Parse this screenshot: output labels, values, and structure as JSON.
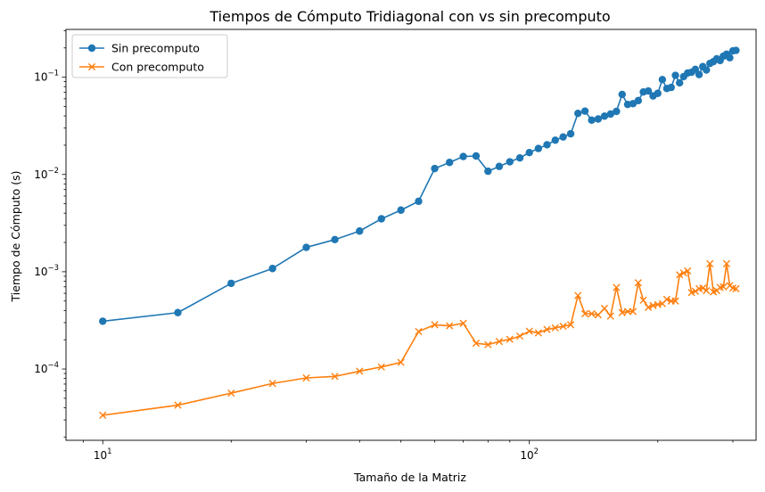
{
  "chart_data": {
    "type": "line",
    "title": "Tiempos de Cómputo Tridiagonal con vs sin precomputo",
    "xlabel": "Tamaño de la Matriz",
    "ylabel": "Tiempo de Cómputo (s)",
    "xscale": "log",
    "yscale": "log",
    "xlim": [
      8.2,
      340
    ],
    "ylim": [
      1.85e-05,
      0.31
    ],
    "grid": false,
    "legend_position": "top-left",
    "x_ticks": [
      {
        "value": 10,
        "base": "10",
        "exp": "1"
      },
      {
        "value": 100,
        "base": "10",
        "exp": "2"
      }
    ],
    "y_ticks": [
      {
        "value": 0.0001,
        "base": "10",
        "exp": "−4"
      },
      {
        "value": 0.001,
        "base": "10",
        "exp": "−3"
      },
      {
        "value": 0.01,
        "base": "10",
        "exp": "−2"
      },
      {
        "value": 0.1,
        "base": "10",
        "exp": "−1"
      }
    ],
    "x": [
      10,
      15,
      20,
      25,
      30,
      35,
      40,
      45,
      50,
      55,
      60,
      65,
      70,
      75,
      80,
      85,
      90,
      95,
      100,
      105,
      110,
      115,
      120,
      125,
      130,
      135,
      140,
      145,
      150,
      155,
      160,
      165,
      170,
      175,
      180,
      185,
      190,
      195,
      200,
      205,
      210,
      215,
      220,
      225,
      230,
      235,
      240,
      245,
      250,
      255,
      260,
      265,
      270,
      275,
      280,
      285,
      290,
      295,
      300,
      305
    ],
    "series": [
      {
        "name": "Sin precomputo",
        "color": "#1f77b4",
        "marker": "circle",
        "values": [
          0.00031,
          0.00038,
          0.00076,
          0.00108,
          0.00178,
          0.00214,
          0.00262,
          0.0035,
          0.0043,
          0.0053,
          0.0115,
          0.0133,
          0.0153,
          0.0155,
          0.0108,
          0.0121,
          0.0135,
          0.0148,
          0.0168,
          0.0185,
          0.0202,
          0.0225,
          0.0243,
          0.0262,
          0.0425,
          0.0448,
          0.0362,
          0.0372,
          0.0398,
          0.0418,
          0.0445,
          0.0665,
          0.0525,
          0.0535,
          0.0575,
          0.0705,
          0.0722,
          0.0642,
          0.0682,
          0.0945,
          0.0765,
          0.0785,
          0.1045,
          0.0875,
          0.1015,
          0.1105,
          0.1125,
          0.1205,
          0.1065,
          0.1285,
          0.1185,
          0.1385,
          0.1445,
          0.1545,
          0.1485,
          0.1645,
          0.1725,
          0.1585,
          0.1865,
          0.1885
        ]
      },
      {
        "name": "Con precomputo",
        "color": "#ff7f0e",
        "marker": "x",
        "values": [
          3.35e-05,
          4.25e-05,
          5.65e-05,
          7.1e-05,
          8.1e-05,
          8.4e-05,
          9.5e-05,
          0.000105,
          0.000117,
          0.000243,
          0.000285,
          0.000278,
          0.000295,
          0.000184,
          0.000178,
          0.000192,
          0.000202,
          0.000218,
          0.000245,
          0.000235,
          0.000255,
          0.000265,
          0.000275,
          0.000285,
          0.00057,
          0.00037,
          0.00037,
          0.00036,
          0.00042,
          0.00035,
          0.00069,
          0.00038,
          0.00039,
          0.00039,
          0.00077,
          0.00051,
          0.00043,
          0.00045,
          0.00046,
          0.00047,
          0.00052,
          0.0005,
          0.0005,
          0.00093,
          0.00097,
          0.00102,
          0.00061,
          0.00063,
          0.00067,
          0.00068,
          0.00064,
          0.00121,
          0.00062,
          0.00064,
          0.00069,
          0.0007,
          0.00121,
          0.00072,
          0.00068,
          0.00067
        ]
      }
    ]
  }
}
